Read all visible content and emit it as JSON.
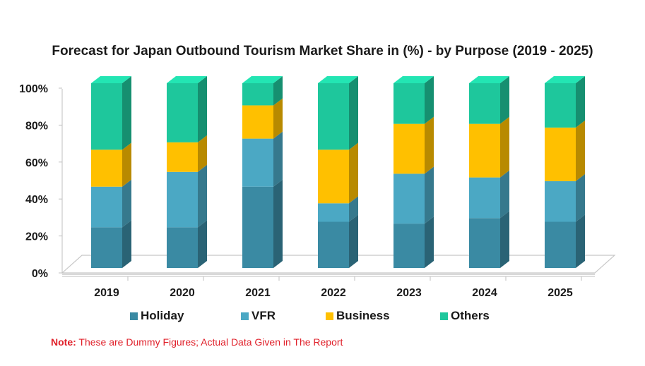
{
  "chart_data": {
    "type": "bar",
    "stacked": true,
    "title": "Forecast for Japan Outbound Tourism Market Share in (%) - by Purpose (2019 - 2025)",
    "categories": [
      "2019",
      "2020",
      "2021",
      "2022",
      "2023",
      "2024",
      "2025"
    ],
    "series": [
      {
        "name": "Holiday",
        "color": "#3a8aa3",
        "values": [
          22,
          22,
          44,
          25,
          24,
          27,
          25
        ]
      },
      {
        "name": "VFR",
        "color": "#4ba8c4",
        "values": [
          22,
          30,
          26,
          10,
          27,
          22,
          22
        ]
      },
      {
        "name": "Business",
        "color": "#ffc000",
        "values": [
          20,
          16,
          18,
          29,
          27,
          29,
          29
        ]
      },
      {
        "name": "Others",
        "color": "#1ec79c",
        "values": [
          36,
          32,
          12,
          36,
          22,
          22,
          24
        ]
      }
    ],
    "yticks": [
      "0%",
      "20%",
      "40%",
      "60%",
      "80%",
      "100%"
    ],
    "ylim": [
      0,
      100
    ],
    "legend_position": "bottom",
    "grid": false
  },
  "note": {
    "label": "Note:",
    "text": " These are Dummy Figures; Actual Data Given in The Report"
  }
}
